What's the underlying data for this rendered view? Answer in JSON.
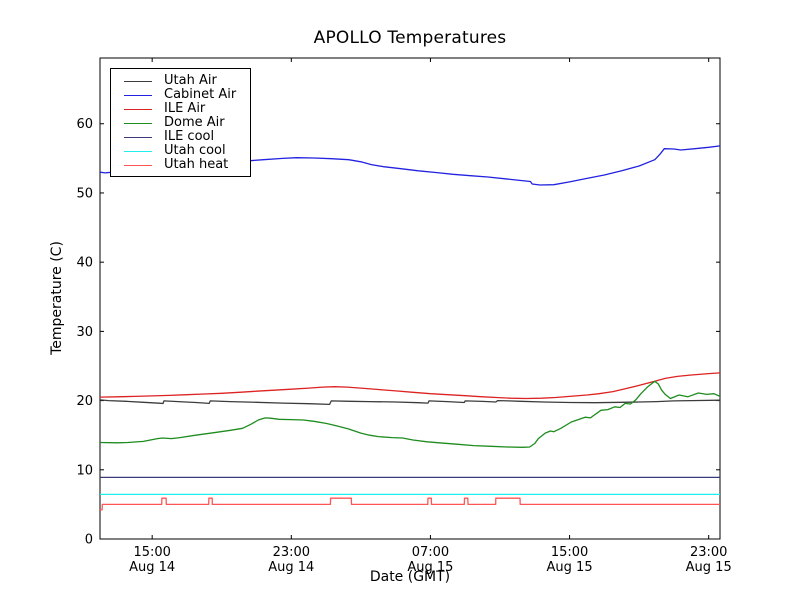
{
  "chart_data": {
    "type": "line",
    "title": "APOLLO Temperatures",
    "xlabel": "Date (GMT)",
    "ylabel": "Temperature (C)",
    "grid": false,
    "legend_position": "upper-left",
    "x_axis_note": "x values are hours elapsed since Aug 14 12:00 GMT",
    "xlim": [
      0,
      35.65
    ],
    "ylim": [
      0,
      69.5
    ],
    "y_ticks": [
      0,
      10,
      20,
      30,
      40,
      50,
      60
    ],
    "x_ticks": [
      {
        "t": 3,
        "time": "15:00",
        "date": "Aug 14"
      },
      {
        "t": 11,
        "time": "23:00",
        "date": "Aug 14"
      },
      {
        "t": 19,
        "time": "07:00",
        "date": "Aug 15"
      },
      {
        "t": 27,
        "time": "15:00",
        "date": "Aug 15"
      },
      {
        "t": 35,
        "time": "23:00",
        "date": "Aug 15"
      }
    ],
    "series": [
      {
        "name": "Utah Air",
        "color": "#3c3c3c",
        "points": [
          [
            0,
            20.1
          ],
          [
            0.5,
            20.0
          ],
          [
            1.5,
            19.9
          ],
          [
            2.5,
            19.75
          ],
          [
            3.4,
            19.62
          ],
          [
            3.62,
            19.58
          ],
          [
            3.68,
            19.95
          ],
          [
            4.5,
            19.85
          ],
          [
            5.5,
            19.72
          ],
          [
            6.28,
            19.6
          ],
          [
            6.34,
            19.95
          ],
          [
            7.5,
            19.85
          ],
          [
            9,
            19.75
          ],
          [
            10.5,
            19.63
          ],
          [
            12,
            19.55
          ],
          [
            13.2,
            19.45
          ],
          [
            13.3,
            19.95
          ],
          [
            14.4,
            19.9
          ],
          [
            15.5,
            19.85
          ],
          [
            17,
            19.8
          ],
          [
            18.3,
            19.7
          ],
          [
            18.86,
            19.64
          ],
          [
            18.92,
            19.95
          ],
          [
            20,
            19.85
          ],
          [
            20.94,
            19.73
          ],
          [
            21.0,
            19.95
          ],
          [
            22,
            19.88
          ],
          [
            22.76,
            19.8
          ],
          [
            22.86,
            20.0
          ],
          [
            23.5,
            19.95
          ],
          [
            24.2,
            19.9
          ],
          [
            25.5,
            19.8
          ],
          [
            27,
            19.72
          ],
          [
            28.5,
            19.7
          ],
          [
            30,
            19.75
          ],
          [
            31,
            19.8
          ],
          [
            32,
            19.85
          ],
          [
            33,
            19.95
          ],
          [
            34,
            20.0
          ],
          [
            35.65,
            20.05
          ]
        ]
      },
      {
        "name": "Cabinet Air",
        "color": "#2222e0",
        "points": [
          [
            0,
            53.0
          ],
          [
            0.3,
            52.9
          ],
          [
            0.7,
            53.0
          ],
          [
            2,
            53.3
          ],
          [
            4,
            53.8
          ],
          [
            6,
            54.2
          ],
          [
            8,
            54.55
          ],
          [
            9.4,
            54.8
          ],
          [
            10.5,
            55.0
          ],
          [
            11.3,
            55.1
          ],
          [
            12.3,
            55.05
          ],
          [
            13.3,
            54.95
          ],
          [
            14.3,
            54.8
          ],
          [
            15,
            54.5
          ],
          [
            15.6,
            54.1
          ],
          [
            16.3,
            53.8
          ],
          [
            17.3,
            53.5
          ],
          [
            18.3,
            53.2
          ],
          [
            19.3,
            52.95
          ],
          [
            20.3,
            52.7
          ],
          [
            21.3,
            52.5
          ],
          [
            22.3,
            52.3
          ],
          [
            23.3,
            52.05
          ],
          [
            24.2,
            51.8
          ],
          [
            24.75,
            51.65
          ],
          [
            24.85,
            51.3
          ],
          [
            25.3,
            51.15
          ],
          [
            26.1,
            51.2
          ],
          [
            27,
            51.6
          ],
          [
            28,
            52.1
          ],
          [
            29,
            52.6
          ],
          [
            30,
            53.2
          ],
          [
            31,
            53.9
          ],
          [
            31.9,
            54.8
          ],
          [
            32.2,
            55.6
          ],
          [
            32.45,
            56.4
          ],
          [
            33,
            56.35
          ],
          [
            33.4,
            56.2
          ],
          [
            34.2,
            56.4
          ],
          [
            35,
            56.6
          ],
          [
            35.65,
            56.8
          ]
        ]
      },
      {
        "name": "ILE Air",
        "color": "#dd2222",
        "points": [
          [
            0,
            20.5
          ],
          [
            1,
            20.55
          ],
          [
            2,
            20.6
          ],
          [
            3,
            20.68
          ],
          [
            4,
            20.75
          ],
          [
            5,
            20.85
          ],
          [
            6,
            20.95
          ],
          [
            7,
            21.05
          ],
          [
            8,
            21.2
          ],
          [
            9,
            21.35
          ],
          [
            10,
            21.5
          ],
          [
            11,
            21.65
          ],
          [
            12,
            21.8
          ],
          [
            12.8,
            21.95
          ],
          [
            13.5,
            22.0
          ],
          [
            14.2,
            21.95
          ],
          [
            15,
            21.8
          ],
          [
            16,
            21.6
          ],
          [
            17,
            21.4
          ],
          [
            18,
            21.2
          ],
          [
            19,
            21.0
          ],
          [
            20,
            20.85
          ],
          [
            21,
            20.7
          ],
          [
            22,
            20.55
          ],
          [
            22.8,
            20.45
          ],
          [
            23.6,
            20.35
          ],
          [
            24.5,
            20.3
          ],
          [
            25.4,
            20.35
          ],
          [
            26.2,
            20.45
          ],
          [
            27,
            20.6
          ],
          [
            28,
            20.8
          ],
          [
            28.7,
            21.0
          ],
          [
            29.5,
            21.3
          ],
          [
            30.2,
            21.7
          ],
          [
            31,
            22.2
          ],
          [
            31.9,
            22.8
          ],
          [
            32.5,
            23.2
          ],
          [
            33.2,
            23.5
          ],
          [
            34,
            23.7
          ],
          [
            35,
            23.9
          ],
          [
            35.65,
            24.0
          ]
        ]
      },
      {
        "name": "Dome Air",
        "color": "#1e8c1e",
        "points": [
          [
            0,
            13.95
          ],
          [
            1,
            13.9
          ],
          [
            1.6,
            13.95
          ],
          [
            2.5,
            14.1
          ],
          [
            3.3,
            14.5
          ],
          [
            3.6,
            14.6
          ],
          [
            4.1,
            14.5
          ],
          [
            4.6,
            14.65
          ],
          [
            5.5,
            15.0
          ],
          [
            6.5,
            15.35
          ],
          [
            7.5,
            15.7
          ],
          [
            8.2,
            16.0
          ],
          [
            8.7,
            16.6
          ],
          [
            9.1,
            17.2
          ],
          [
            9.5,
            17.5
          ],
          [
            9.8,
            17.45
          ],
          [
            10.3,
            17.3
          ],
          [
            11,
            17.25
          ],
          [
            11.7,
            17.2
          ],
          [
            12.3,
            17.0
          ],
          [
            13,
            16.7
          ],
          [
            13.7,
            16.3
          ],
          [
            14.3,
            15.9
          ],
          [
            15,
            15.3
          ],
          [
            15.5,
            15.0
          ],
          [
            16,
            14.8
          ],
          [
            16.8,
            14.65
          ],
          [
            17.4,
            14.6
          ],
          [
            18,
            14.3
          ],
          [
            18.8,
            14.05
          ],
          [
            19.5,
            13.9
          ],
          [
            20.5,
            13.7
          ],
          [
            21.5,
            13.5
          ],
          [
            22.5,
            13.4
          ],
          [
            23.4,
            13.3
          ],
          [
            24.3,
            13.25
          ],
          [
            24.7,
            13.3
          ],
          [
            25.0,
            13.8
          ],
          [
            25.2,
            14.5
          ],
          [
            25.6,
            15.3
          ],
          [
            25.9,
            15.6
          ],
          [
            26.1,
            15.5
          ],
          [
            26.5,
            16.0
          ],
          [
            27.1,
            16.9
          ],
          [
            27.9,
            17.6
          ],
          [
            28.2,
            17.5
          ],
          [
            28.8,
            18.6
          ],
          [
            29.2,
            18.7
          ],
          [
            29.6,
            19.1
          ],
          [
            29.9,
            19.0
          ],
          [
            30.2,
            19.6
          ],
          [
            30.5,
            19.5
          ],
          [
            30.8,
            20.1
          ],
          [
            31.1,
            21.0
          ],
          [
            31.5,
            22.0
          ],
          [
            31.9,
            22.8
          ],
          [
            32.1,
            22.4
          ],
          [
            32.3,
            21.5
          ],
          [
            32.5,
            20.9
          ],
          [
            32.8,
            20.3
          ],
          [
            33.3,
            20.8
          ],
          [
            33.8,
            20.55
          ],
          [
            34.4,
            21.1
          ],
          [
            34.9,
            20.9
          ],
          [
            35.3,
            21.0
          ],
          [
            35.65,
            20.6
          ]
        ]
      },
      {
        "name": "ILE cool",
        "color": "#3a3a7a",
        "points": [
          [
            0,
            8.9
          ],
          [
            35.65,
            8.9
          ]
        ]
      },
      {
        "name": "Utah cool",
        "color": "#22eeee",
        "points": [
          [
            0,
            6.45
          ],
          [
            35.65,
            6.45
          ]
        ]
      },
      {
        "name": "Utah heat",
        "color": "#ff5555",
        "points": [
          [
            0,
            4.2
          ],
          [
            0.12,
            4.2
          ],
          [
            0.13,
            5.0
          ],
          [
            3.55,
            5.0
          ],
          [
            3.56,
            5.9
          ],
          [
            3.8,
            5.9
          ],
          [
            3.81,
            5.0
          ],
          [
            6.25,
            5.0
          ],
          [
            6.26,
            5.9
          ],
          [
            6.45,
            5.9
          ],
          [
            6.46,
            5.0
          ],
          [
            13.25,
            5.0
          ],
          [
            13.26,
            5.9
          ],
          [
            14.45,
            5.9
          ],
          [
            14.46,
            5.0
          ],
          [
            18.85,
            5.0
          ],
          [
            18.86,
            5.9
          ],
          [
            19.05,
            5.9
          ],
          [
            19.06,
            5.0
          ],
          [
            20.95,
            5.0
          ],
          [
            20.96,
            5.9
          ],
          [
            21.15,
            5.9
          ],
          [
            21.16,
            5.0
          ],
          [
            22.75,
            5.0
          ],
          [
            22.76,
            5.9
          ],
          [
            24.15,
            5.9
          ],
          [
            24.16,
            5.0
          ],
          [
            35.65,
            5.0
          ]
        ]
      }
    ]
  }
}
